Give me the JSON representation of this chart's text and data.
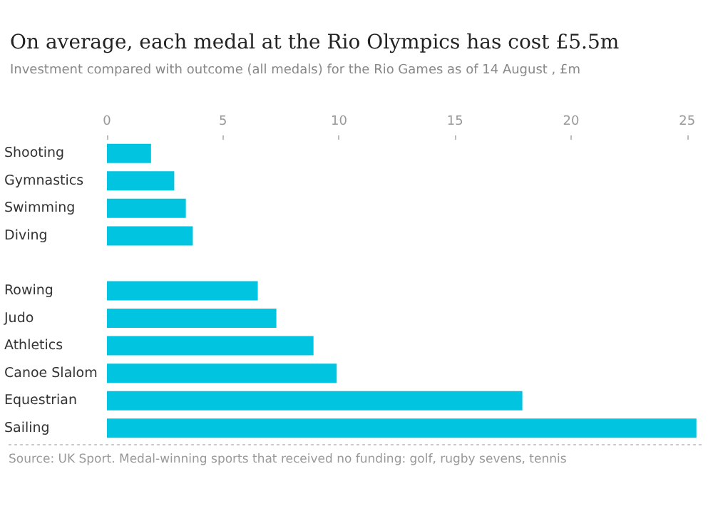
{
  "chart_data": {
    "type": "bar",
    "orientation": "horizontal",
    "title": "On average, each medal at the Rio Olympics has cost £5.5m",
    "subtitle": "Investment compared with outcome (all medals) for the Rio Games as of 14 August , £m",
    "categories": [
      "Shooting",
      "Gymnastics",
      "Swimming",
      "Diving",
      null,
      "Rowing",
      "Judo",
      "Athletics",
      "Canoe Slalom",
      "Equestrian",
      "Sailing"
    ],
    "values": [
      1.9,
      2.9,
      3.4,
      3.7,
      null,
      6.5,
      7.3,
      8.9,
      9.9,
      17.9,
      25.4
    ],
    "color": "#00c4e0",
    "xlim": [
      0,
      25.5
    ],
    "xticks": [
      0,
      5,
      10,
      15,
      20,
      25
    ],
    "annotations": [
      "Source: UK Sport. Medal-winning sports that received no funding: golf, rugby sevens, tennis"
    ]
  }
}
